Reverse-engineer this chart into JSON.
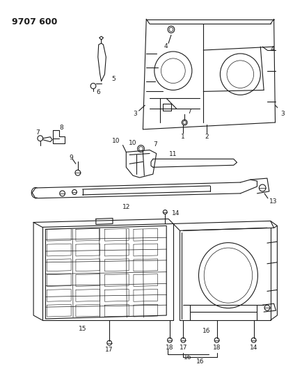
{
  "title": "9707 600",
  "background_color": "#ffffff",
  "line_color": "#1a1a1a",
  "title_fontsize": 9,
  "label_fontsize": 6.5,
  "fig_width": 4.11,
  "fig_height": 5.33,
  "dpi": 100
}
